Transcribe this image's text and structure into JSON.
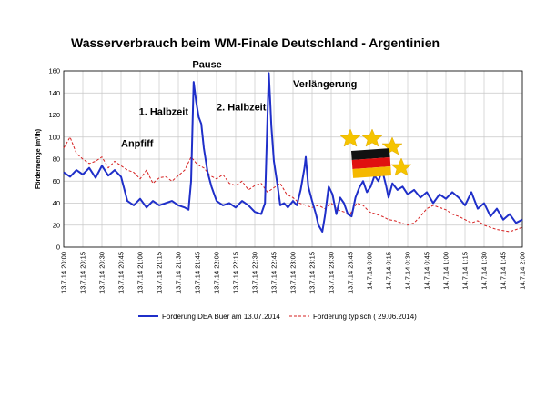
{
  "chart_data": {
    "type": "line",
    "title": "Wasserverbrauch beim WM-Finale Deutschland - Argentinien",
    "xlabel": "",
    "ylabel": "Fördermenge (m³/h)",
    "ylim": [
      0,
      160
    ],
    "yticks": [
      0,
      20,
      40,
      60,
      80,
      100,
      120,
      140,
      160
    ],
    "xlim": [
      0,
      360
    ],
    "grid": true,
    "legend_position": "bottom",
    "x_tick_labels": [
      "13.7.14 20:00",
      "13.7.14 20:15",
      "13.7.14 20:30",
      "13.7.14 20:45",
      "13.7.14 21:00",
      "13.7.14 21:15",
      "13.7.14 21:30",
      "13.7.14 21:45",
      "13.7.14 22:00",
      "13.7.14 22:15",
      "13.7.14 22:30",
      "13.7.14 22:45",
      "13.7.14 23:00",
      "13.7.14 23:15",
      "13.7.14 23:30",
      "13.7.14 23:45",
      "14.7.14 0:00",
      "14.7.14 0:15",
      "14.7.14 0:30",
      "14.7.14 0:45",
      "14.7.14 1:00",
      "14.7.14 1:15",
      "14.7.14 1:30",
      "14.7.14 1:45",
      "14.7.14 2:00"
    ],
    "annotations": [
      {
        "text": "Anpfiff",
        "x": 45,
        "y": 91
      },
      {
        "text": "1. Halbzeit",
        "x": 59,
        "y": 120
      },
      {
        "text": "Pause",
        "x": 101,
        "y": 163
      },
      {
        "text": "2. Halbzeit",
        "x": 120,
        "y": 124
      },
      {
        "text": "Verlängerung",
        "x": 180,
        "y": 145
      }
    ],
    "series": [
      {
        "name": "Förderung DEA Buer am 13.07.2014",
        "color": "#1f2fc9",
        "style": "solid",
        "x": [
          0,
          5,
          10,
          15,
          20,
          25,
          30,
          35,
          40,
          45,
          50,
          55,
          60,
          65,
          70,
          75,
          80,
          85,
          90,
          95,
          98,
          100,
          102,
          104,
          106,
          108,
          110,
          113,
          116,
          120,
          125,
          130,
          135,
          140,
          145,
          150,
          155,
          158,
          160,
          161,
          162,
          163,
          165,
          168,
          170,
          173,
          176,
          180,
          183,
          186,
          189,
          190,
          192,
          195,
          198,
          200,
          203,
          205,
          208,
          211,
          214,
          217,
          220,
          223,
          226,
          229,
          232,
          235,
          238,
          241,
          244,
          247,
          250,
          253,
          255,
          258,
          262,
          266,
          270,
          275,
          280,
          285,
          290,
          295,
          300,
          305,
          310,
          315,
          320,
          325,
          330,
          335,
          340,
          345,
          350,
          355,
          360
        ],
        "y": [
          68,
          64,
          70,
          66,
          72,
          63,
          74,
          65,
          70,
          64,
          42,
          38,
          44,
          36,
          42,
          38,
          40,
          42,
          38,
          36,
          34,
          60,
          150,
          132,
          118,
          112,
          90,
          68,
          55,
          42,
          38,
          40,
          36,
          42,
          38,
          32,
          30,
          40,
          120,
          158,
          135,
          110,
          78,
          55,
          38,
          40,
          36,
          42,
          38,
          52,
          72,
          82,
          55,
          42,
          30,
          20,
          14,
          28,
          55,
          48,
          30,
          45,
          40,
          30,
          28,
          45,
          54,
          60,
          50,
          55,
          65,
          60,
          70,
          56,
          45,
          58,
          52,
          55,
          48,
          52,
          45,
          50,
          40,
          48,
          44,
          50,
          45,
          38,
          50,
          35,
          40,
          28,
          35,
          25,
          30,
          22,
          25
        ]
      },
      {
        "name": "Förderung typisch ( 29.06.2014)",
        "color": "#d62020",
        "style": "dashed",
        "x": [
          0,
          5,
          10,
          15,
          20,
          25,
          30,
          35,
          40,
          45,
          50,
          55,
          60,
          65,
          70,
          75,
          80,
          85,
          90,
          95,
          100,
          105,
          110,
          115,
          120,
          125,
          130,
          135,
          140,
          145,
          150,
          155,
          160,
          165,
          170,
          175,
          180,
          185,
          190,
          195,
          200,
          205,
          210,
          215,
          220,
          225,
          230,
          235,
          240,
          245,
          250,
          255,
          260,
          265,
          270,
          275,
          280,
          285,
          290,
          295,
          300,
          305,
          310,
          315,
          320,
          325,
          330,
          335,
          340,
          345,
          350,
          355,
          360
        ],
        "y": [
          90,
          100,
          85,
          80,
          76,
          78,
          82,
          72,
          78,
          74,
          70,
          68,
          62,
          70,
          58,
          63,
          64,
          60,
          65,
          70,
          82,
          75,
          72,
          65,
          62,
          66,
          58,
          56,
          60,
          52,
          56,
          58,
          50,
          54,
          58,
          48,
          45,
          40,
          38,
          36,
          38,
          35,
          40,
          34,
          32,
          30,
          40,
          38,
          32,
          30,
          28,
          25,
          24,
          22,
          20,
          22,
          28,
          35,
          38,
          36,
          34,
          30,
          28,
          25,
          22,
          24,
          20,
          18,
          16,
          15,
          14,
          16,
          18
        ]
      }
    ]
  }
}
